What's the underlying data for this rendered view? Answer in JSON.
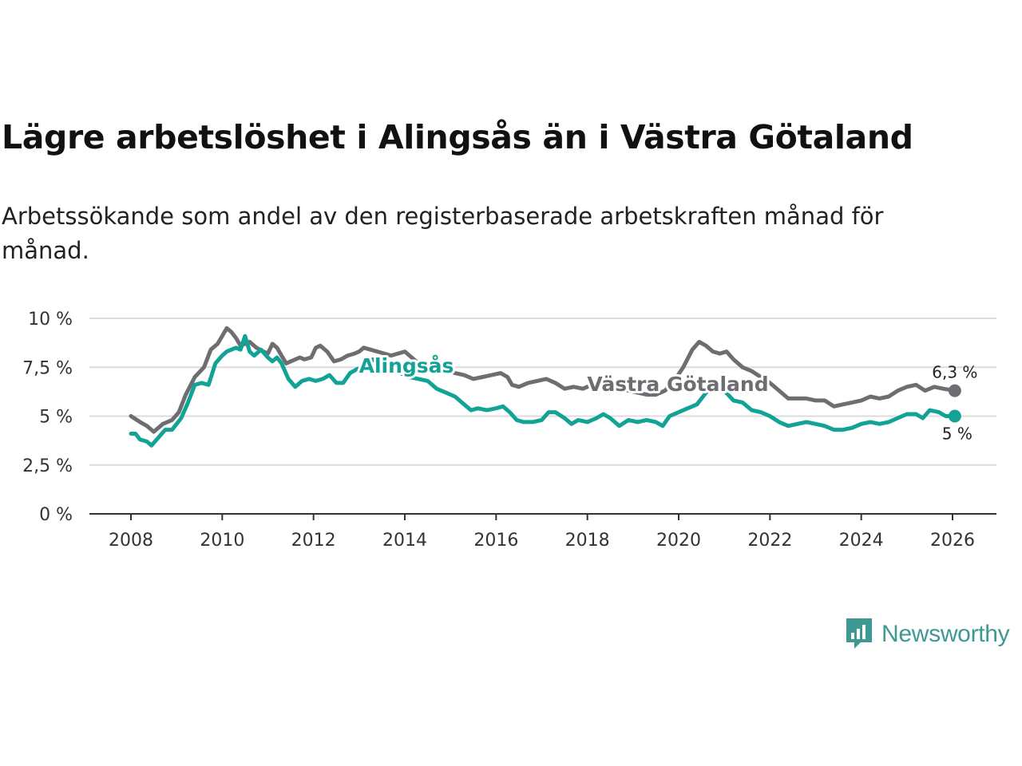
{
  "title": "Lägre arbetslöshet i Alingsås än i Västra Götaland",
  "subtitle": "Arbetssökande som andel av den registerbaserade arbetskraften månad för månad.",
  "brand": {
    "name": "Newsworthy",
    "icon": "newsworthy-bar-chart-icon",
    "color": "#3d9991"
  },
  "chart_data": {
    "type": "line",
    "title": "Lägre arbetslöshet i Alingsås än i Västra Götaland",
    "xlabel": "",
    "ylabel": "",
    "xlim": [
      2007,
      2027
    ],
    "ylim": [
      0,
      10
    ],
    "x_ticks": [
      2008,
      2010,
      2012,
      2014,
      2016,
      2018,
      2020,
      2022,
      2024,
      2026
    ],
    "x_tick_labels": [
      "2008",
      "2010",
      "2012",
      "2014",
      "2016",
      "2018",
      "2020",
      "2022",
      "2024",
      "2026"
    ],
    "y_ticks": [
      0,
      2.5,
      5,
      7.5,
      10
    ],
    "y_tick_labels": [
      "0 %",
      "2,5 %",
      "5 %",
      "7,5 %",
      "10 %"
    ],
    "grid": true,
    "legend": "inline labels",
    "series": [
      {
        "name": "Västra Götaland",
        "color": "#6e6e72",
        "end_label": "6,3 %",
        "points": [
          [
            2008.0,
            5.0
          ],
          [
            2008.2,
            4.7
          ],
          [
            2008.35,
            4.5
          ],
          [
            2008.5,
            4.2
          ],
          [
            2008.7,
            4.6
          ],
          [
            2008.9,
            4.8
          ],
          [
            2009.05,
            5.2
          ],
          [
            2009.2,
            6.1
          ],
          [
            2009.4,
            7.0
          ],
          [
            2009.6,
            7.5
          ],
          [
            2009.75,
            8.4
          ],
          [
            2009.9,
            8.7
          ],
          [
            2010.0,
            9.1
          ],
          [
            2010.1,
            9.5
          ],
          [
            2010.2,
            9.3
          ],
          [
            2010.3,
            9.0
          ],
          [
            2010.4,
            8.6
          ],
          [
            2010.6,
            8.8
          ],
          [
            2010.75,
            8.5
          ],
          [
            2010.9,
            8.3
          ],
          [
            2011.0,
            8.2
          ],
          [
            2011.1,
            8.7
          ],
          [
            2011.2,
            8.5
          ],
          [
            2011.3,
            8.1
          ],
          [
            2011.4,
            7.7
          ],
          [
            2011.5,
            7.8
          ],
          [
            2011.7,
            8.0
          ],
          [
            2011.8,
            7.9
          ],
          [
            2011.95,
            8.0
          ],
          [
            2012.05,
            8.5
          ],
          [
            2012.15,
            8.6
          ],
          [
            2012.3,
            8.3
          ],
          [
            2012.45,
            7.8
          ],
          [
            2012.6,
            7.9
          ],
          [
            2012.75,
            8.1
          ],
          [
            2012.9,
            8.2
          ],
          [
            2013.0,
            8.3
          ],
          [
            2013.1,
            8.5
          ],
          [
            2013.25,
            8.4
          ],
          [
            2013.4,
            8.3
          ],
          [
            2013.55,
            8.2
          ],
          [
            2013.7,
            8.1
          ],
          [
            2013.85,
            8.2
          ],
          [
            2014.0,
            8.3
          ],
          [
            2014.15,
            8.0
          ],
          [
            2014.3,
            7.7
          ],
          [
            2014.5,
            7.5
          ],
          [
            2014.7,
            7.3
          ],
          [
            2014.9,
            7.4
          ],
          [
            2015.1,
            7.2
          ],
          [
            2015.3,
            7.1
          ],
          [
            2015.5,
            6.9
          ],
          [
            2015.7,
            7.0
          ],
          [
            2015.9,
            7.1
          ],
          [
            2016.1,
            7.2
          ],
          [
            2016.25,
            7.0
          ],
          [
            2016.35,
            6.6
          ],
          [
            2016.5,
            6.5
          ],
          [
            2016.7,
            6.7
          ],
          [
            2016.9,
            6.8
          ],
          [
            2017.1,
            6.9
          ],
          [
            2017.3,
            6.7
          ],
          [
            2017.5,
            6.4
          ],
          [
            2017.7,
            6.5
          ],
          [
            2017.9,
            6.4
          ],
          [
            2018.1,
            6.6
          ],
          [
            2018.3,
            6.5
          ],
          [
            2018.5,
            6.3
          ],
          [
            2018.7,
            6.4
          ],
          [
            2018.9,
            6.3
          ],
          [
            2019.1,
            6.2
          ],
          [
            2019.3,
            6.1
          ],
          [
            2019.5,
            6.1
          ],
          [
            2019.7,
            6.3
          ],
          [
            2019.9,
            6.8
          ],
          [
            2020.1,
            7.5
          ],
          [
            2020.3,
            8.4
          ],
          [
            2020.45,
            8.8
          ],
          [
            2020.6,
            8.6
          ],
          [
            2020.75,
            8.3
          ],
          [
            2020.9,
            8.2
          ],
          [
            2021.05,
            8.3
          ],
          [
            2021.2,
            7.9
          ],
          [
            2021.4,
            7.5
          ],
          [
            2021.6,
            7.3
          ],
          [
            2021.8,
            7.0
          ],
          [
            2022.0,
            6.7
          ],
          [
            2022.2,
            6.3
          ],
          [
            2022.4,
            5.9
          ],
          [
            2022.6,
            5.9
          ],
          [
            2022.8,
            5.9
          ],
          [
            2023.0,
            5.8
          ],
          [
            2023.2,
            5.8
          ],
          [
            2023.4,
            5.5
          ],
          [
            2023.6,
            5.6
          ],
          [
            2023.8,
            5.7
          ],
          [
            2024.0,
            5.8
          ],
          [
            2024.2,
            6.0
          ],
          [
            2024.4,
            5.9
          ],
          [
            2024.6,
            6.0
          ],
          [
            2024.8,
            6.3
          ],
          [
            2025.0,
            6.5
          ],
          [
            2025.2,
            6.6
          ],
          [
            2025.4,
            6.3
          ],
          [
            2025.6,
            6.5
          ],
          [
            2025.8,
            6.4
          ],
          [
            2026.05,
            6.3
          ]
        ]
      },
      {
        "name": "Alingsås",
        "color": "#12a396",
        "end_label": "5 %",
        "points": [
          [
            2008.0,
            4.1
          ],
          [
            2008.1,
            4.1
          ],
          [
            2008.2,
            3.8
          ],
          [
            2008.35,
            3.7
          ],
          [
            2008.45,
            3.5
          ],
          [
            2008.6,
            3.9
          ],
          [
            2008.75,
            4.3
          ],
          [
            2008.9,
            4.3
          ],
          [
            2009.1,
            4.9
          ],
          [
            2009.25,
            5.7
          ],
          [
            2009.4,
            6.6
          ],
          [
            2009.55,
            6.7
          ],
          [
            2009.7,
            6.6
          ],
          [
            2009.85,
            7.7
          ],
          [
            2010.0,
            8.1
          ],
          [
            2010.1,
            8.3
          ],
          [
            2010.2,
            8.4
          ],
          [
            2010.3,
            8.5
          ],
          [
            2010.4,
            8.4
          ],
          [
            2010.5,
            9.1
          ],
          [
            2010.6,
            8.3
          ],
          [
            2010.7,
            8.1
          ],
          [
            2010.85,
            8.4
          ],
          [
            2011.0,
            8.0
          ],
          [
            2011.1,
            7.8
          ],
          [
            2011.2,
            8.0
          ],
          [
            2011.3,
            7.7
          ],
          [
            2011.45,
            6.9
          ],
          [
            2011.6,
            6.5
          ],
          [
            2011.75,
            6.8
          ],
          [
            2011.9,
            6.9
          ],
          [
            2012.05,
            6.8
          ],
          [
            2012.2,
            6.9
          ],
          [
            2012.35,
            7.1
          ],
          [
            2012.5,
            6.7
          ],
          [
            2012.65,
            6.7
          ],
          [
            2012.8,
            7.2
          ],
          [
            2012.95,
            7.4
          ],
          [
            2013.1,
            7.5
          ],
          [
            2013.3,
            7.9
          ],
          [
            2013.5,
            7.6
          ],
          [
            2013.7,
            7.3
          ],
          [
            2013.9,
            7.2
          ],
          [
            2014.1,
            7.0
          ],
          [
            2014.3,
            6.9
          ],
          [
            2014.5,
            6.8
          ],
          [
            2014.7,
            6.4
          ],
          [
            2014.9,
            6.2
          ],
          [
            2015.1,
            6.0
          ],
          [
            2015.3,
            5.6
          ],
          [
            2015.45,
            5.3
          ],
          [
            2015.6,
            5.4
          ],
          [
            2015.8,
            5.3
          ],
          [
            2016.0,
            5.4
          ],
          [
            2016.15,
            5.5
          ],
          [
            2016.3,
            5.2
          ],
          [
            2016.45,
            4.8
          ],
          [
            2016.6,
            4.7
          ],
          [
            2016.8,
            4.7
          ],
          [
            2017.0,
            4.8
          ],
          [
            2017.15,
            5.2
          ],
          [
            2017.3,
            5.2
          ],
          [
            2017.5,
            4.9
          ],
          [
            2017.65,
            4.6
          ],
          [
            2017.8,
            4.8
          ],
          [
            2018.0,
            4.7
          ],
          [
            2018.2,
            4.9
          ],
          [
            2018.35,
            5.1
          ],
          [
            2018.5,
            4.9
          ],
          [
            2018.7,
            4.5
          ],
          [
            2018.9,
            4.8
          ],
          [
            2019.1,
            4.7
          ],
          [
            2019.3,
            4.8
          ],
          [
            2019.5,
            4.7
          ],
          [
            2019.65,
            4.5
          ],
          [
            2019.8,
            5.0
          ],
          [
            2020.0,
            5.2
          ],
          [
            2020.2,
            5.4
          ],
          [
            2020.4,
            5.6
          ],
          [
            2020.6,
            6.2
          ],
          [
            2020.8,
            6.6
          ],
          [
            2021.0,
            6.3
          ],
          [
            2021.2,
            5.8
          ],
          [
            2021.4,
            5.7
          ],
          [
            2021.6,
            5.3
          ],
          [
            2021.8,
            5.2
          ],
          [
            2022.0,
            5.0
          ],
          [
            2022.2,
            4.7
          ],
          [
            2022.4,
            4.5
          ],
          [
            2022.6,
            4.6
          ],
          [
            2022.8,
            4.7
          ],
          [
            2023.0,
            4.6
          ],
          [
            2023.2,
            4.5
          ],
          [
            2023.4,
            4.3
          ],
          [
            2023.6,
            4.3
          ],
          [
            2023.8,
            4.4
          ],
          [
            2024.0,
            4.6
          ],
          [
            2024.2,
            4.7
          ],
          [
            2024.4,
            4.6
          ],
          [
            2024.6,
            4.7
          ],
          [
            2024.8,
            4.9
          ],
          [
            2025.0,
            5.1
          ],
          [
            2025.2,
            5.1
          ],
          [
            2025.35,
            4.9
          ],
          [
            2025.5,
            5.3
          ],
          [
            2025.7,
            5.2
          ],
          [
            2025.85,
            5.0
          ],
          [
            2026.05,
            5.0
          ]
        ]
      }
    ]
  }
}
